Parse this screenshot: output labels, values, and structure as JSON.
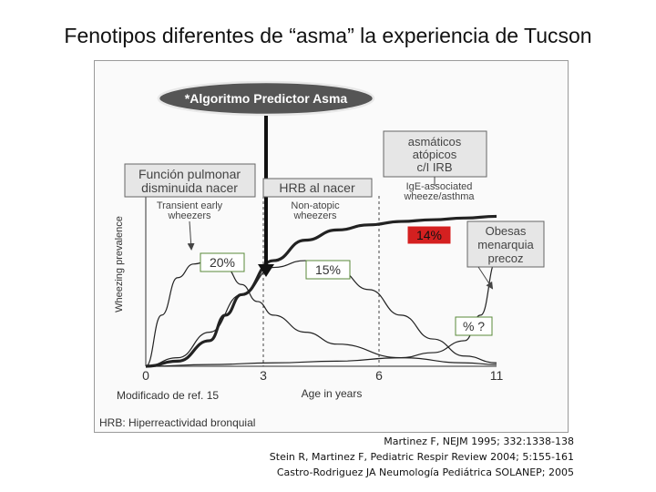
{
  "slide": {
    "title": "Fenotipos diferentes de “asma”  la experiencia de Tucson"
  },
  "figure": {
    "algorithm_label": "*Algoritmo Predictor Asma",
    "box_funcion": [
      "Función pulmonar",
      "disminuida nacer"
    ],
    "box_hrb": "HRB al nacer",
    "box_atopicos": [
      "asmáticos",
      "atópicos",
      "c/I IRB"
    ],
    "box_obesas": [
      "Obesas",
      "menarquia",
      "precoz"
    ],
    "label_transient": [
      "Transient early",
      "wheezers"
    ],
    "label_nonatopic": [
      "Non-atopic",
      "wheezers"
    ],
    "label_ige": [
      "IgE-associated",
      "wheeze/asthma"
    ],
    "badge_20": "20%",
    "badge_15": "15%",
    "badge_14": "14%",
    "badge_q": "% ?",
    "modificado": "Modificado de ref. 15",
    "footnote": "HRB: Hiperreactividad bronquial",
    "colors": {
      "badge_red": "#d42020",
      "badge_green_border": "#5a8a3a",
      "line": "#222222"
    }
  },
  "chart_data": {
    "type": "line",
    "xlabel": "Age in years",
    "ylabel": "Wheezing prevalence",
    "x_ticks": [
      "0",
      "3",
      "6",
      "11"
    ],
    "xlim": [
      0,
      11
    ],
    "ylim": [
      0,
      1
    ],
    "vlines": [
      3,
      6
    ],
    "series": [
      {
        "name": "Transient early wheezers",
        "x": [
          0,
          0.5,
          1,
          1.5,
          2,
          2.5,
          3,
          3.5,
          4,
          5,
          6,
          8,
          10,
          11
        ],
        "y": [
          0.0,
          0.3,
          0.52,
          0.6,
          0.62,
          0.58,
          0.48,
          0.38,
          0.3,
          0.2,
          0.13,
          0.05,
          0.02,
          0.01
        ]
      },
      {
        "name": "Non-atopic wheezers",
        "x": [
          0,
          1,
          2,
          3,
          4,
          5,
          6,
          7,
          8,
          9,
          10,
          11
        ],
        "y": [
          0.0,
          0.05,
          0.2,
          0.42,
          0.58,
          0.62,
          0.57,
          0.45,
          0.3,
          0.16,
          0.06,
          0.02
        ]
      },
      {
        "name": "IgE-associated wheeze/asthma",
        "x": [
          0,
          1,
          2,
          2.5,
          3,
          4,
          5,
          6,
          7,
          8,
          9,
          10,
          11
        ],
        "y": [
          0.0,
          0.03,
          0.15,
          0.3,
          0.42,
          0.62,
          0.74,
          0.8,
          0.83,
          0.85,
          0.86,
          0.87,
          0.88
        ]
      },
      {
        "name": "Obesas menarquia precoz",
        "x": [
          0,
          2,
          4,
          6,
          8,
          9,
          10,
          10.5,
          11
        ],
        "y": [
          0.0,
          0.01,
          0.02,
          0.03,
          0.05,
          0.08,
          0.15,
          0.3,
          0.62
        ]
      }
    ]
  },
  "refs": [
    "Martinez F, NEJM 1995; 332:1338-138",
    "Stein R, Martinez F, Pediatric Respir Review 2004; 5:155-161",
    "Castro-Rodriguez JA Neumología Pediátrica SOLANEP; 2005"
  ]
}
